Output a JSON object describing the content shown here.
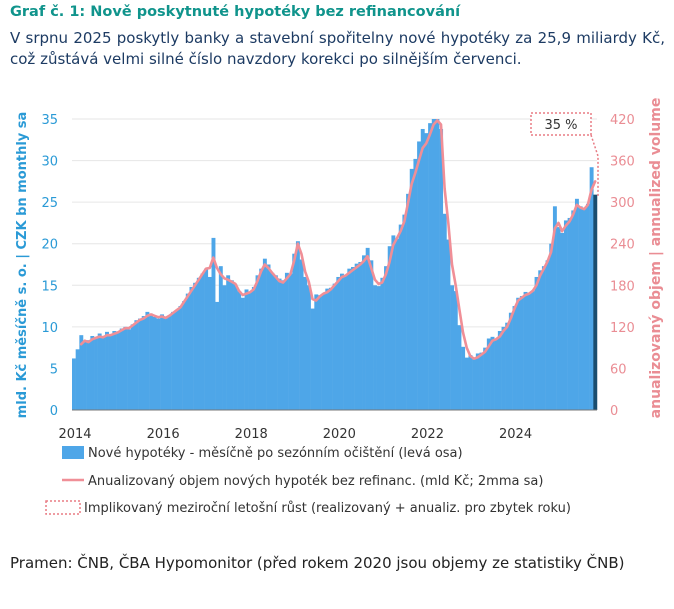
{
  "header": {
    "title": "Graf č. 1: Nově poskytnuté hypotéky bez refinancování",
    "subtitle": "V srpnu 2025 poskytly banky a stavební spořitelny nové hypotéky za 25,9 miliardy Kč, což zůstává velmi silné číslo navzdory korekci po silnějším červenci."
  },
  "footer": {
    "source": "Pramen: ČNB, ČBA Hypomonitor (před rokem 2020 jsou objemy ze statistiky ČNB)"
  },
  "chart_data": {
    "type": "bar",
    "start": "2014-01",
    "x_tick_labels": [
      "2014",
      "2016",
      "2018",
      "2020",
      "2022",
      "2024"
    ],
    "ylabel": "mld. Kč měsíčně s. o. | CZK bn monthly sa",
    "y2label": "anualizovaný objem | annualized volume",
    "ylim": [
      0,
      35
    ],
    "y_ticks": [
      "0",
      "5",
      "10",
      "15",
      "20",
      "25",
      "30",
      "35"
    ],
    "y2lim": [
      0,
      420
    ],
    "y2_ticks": [
      "0",
      "60",
      "120",
      "180",
      "240",
      "300",
      "360",
      "420"
    ],
    "annotation": "35 %",
    "annotation_value_y2": 405,
    "colors": {
      "bars": "#4ea6e8",
      "last_bar": "#1a4d6e",
      "line": "#f08f97",
      "dotted": "#e87b84",
      "left_axis": "#2a9ad6",
      "right_axis": "#ea8d94"
    },
    "legend": [
      "Nové hypotéky - měsíčně po sezónním očištění (levá osa)",
      "Anualizovaný objem nových hypoték bez refinanc. (mld Kč; 2mma sa)",
      "Implikovaný meziroční letošní růst (realizovaný + anualiz. pro zbytek roku)"
    ],
    "series": [
      {
        "name": "Nové hypotéky - měsíčně po sezónním očištění (levá osa)",
        "axis": "left",
        "values": [
          6.2,
          7.3,
          9.0,
          8.2,
          8.4,
          8.9,
          8.6,
          9.2,
          8.8,
          9.4,
          9.0,
          9.5,
          9.4,
          9.8,
          10.0,
          9.7,
          10.3,
          10.8,
          11.0,
          11.3,
          11.8,
          11.6,
          11.2,
          11.0,
          11.5,
          11.0,
          11.3,
          11.8,
          12.0,
          12.5,
          13.1,
          14.0,
          14.8,
          15.3,
          15.9,
          16.4,
          17.0,
          16.0,
          20.7,
          13.0,
          17.3,
          15.0,
          16.2,
          15.6,
          15.1,
          14.3,
          13.5,
          14.5,
          14.2,
          14.8,
          16.2,
          17.0,
          18.2,
          17.5,
          16.5,
          16.2,
          15.8,
          15.6,
          16.5,
          16.4,
          18.8,
          20.3,
          18.1,
          16.0,
          15.0,
          12.2,
          13.9,
          13.8,
          14.0,
          14.6,
          14.7,
          15.2,
          16.0,
          16.4,
          16.2,
          17.0,
          17.2,
          17.6,
          17.8,
          18.6,
          19.5,
          18.0,
          15.0,
          14.9,
          15.9,
          17.3,
          19.7,
          21.0,
          20.6,
          22.3,
          23.5,
          26.0,
          29.0,
          30.2,
          32.3,
          33.8,
          33.3,
          34.5,
          35.0,
          35.0,
          33.8,
          23.6,
          20.5,
          15.0,
          14.3,
          10.2,
          7.6,
          6.3,
          6.6,
          6.1,
          6.8,
          6.9,
          7.5,
          8.6,
          8.8,
          8.5,
          9.5,
          10.0,
          10.5,
          11.7,
          12.5,
          13.5,
          13.7,
          14.2,
          14.0,
          14.3,
          16.0,
          16.8,
          17.3,
          18.0,
          20.0,
          24.5,
          22.0,
          21.3,
          22.8,
          23.1,
          24.0,
          25.4,
          24.5,
          24.3,
          24.8,
          29.2,
          25.9
        ]
      },
      {
        "name": "Anualizovaný objem nových hypoték bez refinanc. (mld Kč; 2mma sa)",
        "axis": "right",
        "values": [
          null,
          null,
          95,
          100,
          98,
          102,
          104,
          106,
          105,
          108,
          108,
          110,
          112,
          115,
          118,
          118,
          122,
          126,
          130,
          132,
          136,
          138,
          136,
          134,
          135,
          133,
          136,
          140,
          144,
          148,
          156,
          164,
          172,
          180,
          188,
          196,
          204,
          205,
          220,
          205,
          196,
          190,
          188,
          185,
          182,
          172,
          166,
          168,
          170,
          174,
          186,
          200,
          210,
          205,
          198,
          192,
          186,
          184,
          190,
          196,
          215,
          240,
          225,
          200,
          185,
          160,
          158,
          164,
          168,
          170,
          174,
          180,
          186,
          192,
          194,
          198,
          202,
          206,
          210,
          215,
          222,
          205,
          188,
          182,
          184,
          196,
          214,
          238,
          248,
          258,
          272,
          298,
          326,
          342,
          360,
          378,
          385,
          398,
          412,
          418,
          412,
          320,
          270,
          210,
          180,
          146,
          112,
          90,
          78,
          74,
          76,
          80,
          84,
          92,
          100,
          102,
          106,
          114,
          120,
          132,
          146,
          158,
          162,
          166,
          168,
          172,
          180,
          194,
          204,
          214,
          228,
          262,
          270,
          258,
          266,
          272,
          282,
          296,
          292,
          290,
          296,
          318,
          330
        ]
      }
    ]
  }
}
